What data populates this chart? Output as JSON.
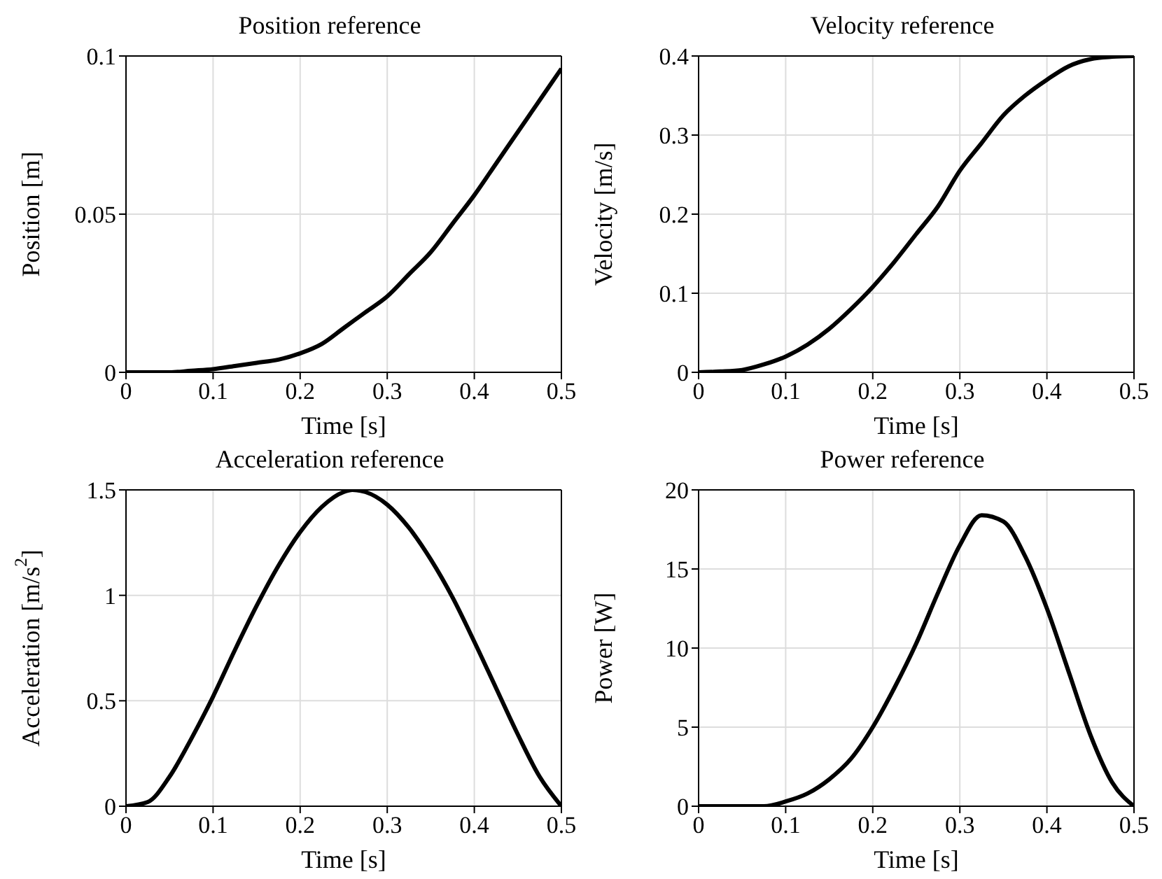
{
  "chart_data": [
    {
      "type": "line",
      "title": "Position reference",
      "xlabel": "Time [s]",
      "ylabel": "Position [m]",
      "xlim": [
        0,
        0.5
      ],
      "xticks": [
        0,
        0.1,
        0.2,
        0.3,
        0.4,
        0.5
      ],
      "ylim": [
        0,
        0.1
      ],
      "yticks": [
        0,
        0.05,
        0.1
      ],
      "grid": true,
      "marker": "none",
      "line_style": "solid",
      "x": [
        0,
        0.025,
        0.05,
        0.075,
        0.1,
        0.125,
        0.15,
        0.175,
        0.2,
        0.225,
        0.25,
        0.275,
        0.3,
        0.325,
        0.35,
        0.375,
        0.4,
        0.425,
        0.45,
        0.475,
        0.5
      ],
      "series": [
        {
          "color": "#000000",
          "values": [
            0,
            0,
            0,
            0.0005,
            0.001,
            0.002,
            0.003,
            0.004,
            0.006,
            0.009,
            0.014,
            0.019,
            0.024,
            0.031,
            0.038,
            0.047,
            0.056,
            0.066,
            0.076,
            0.086,
            0.096
          ]
        }
      ]
    },
    {
      "type": "line",
      "title": "Velocity reference",
      "xlabel": "Time [s]",
      "ylabel": "Velocity [m/s]",
      "xlim": [
        0,
        0.5
      ],
      "xticks": [
        0,
        0.1,
        0.2,
        0.3,
        0.4,
        0.5
      ],
      "ylim": [
        0,
        0.4
      ],
      "yticks": [
        0,
        0.1,
        0.2,
        0.3,
        0.4
      ],
      "grid": true,
      "marker": "none",
      "line_style": "solid",
      "x": [
        0,
        0.025,
        0.05,
        0.075,
        0.1,
        0.125,
        0.15,
        0.175,
        0.2,
        0.225,
        0.25,
        0.275,
        0.3,
        0.325,
        0.35,
        0.375,
        0.4,
        0.425,
        0.45,
        0.475,
        0.5
      ],
      "series": [
        {
          "color": "#000000",
          "values": [
            0,
            0.001,
            0.003,
            0.01,
            0.02,
            0.035,
            0.055,
            0.08,
            0.108,
            0.14,
            0.175,
            0.21,
            0.255,
            0.29,
            0.325,
            0.35,
            0.37,
            0.387,
            0.396,
            0.399,
            0.4
          ]
        }
      ]
    },
    {
      "type": "line",
      "title": "Acceleration reference",
      "xlabel": "Time [s]",
      "ylabel": "Acceleration [m/s$^{2}$]",
      "xlim": [
        0,
        0.5
      ],
      "xticks": [
        0,
        0.1,
        0.2,
        0.3,
        0.4,
        0.5
      ],
      "ylim": [
        0,
        1.5
      ],
      "yticks": [
        0,
        0.5,
        1,
        1.5
      ],
      "grid": true,
      "marker": "none",
      "line_style": "solid",
      "x": [
        0,
        0.025,
        0.05,
        0.075,
        0.1,
        0.125,
        0.15,
        0.175,
        0.2,
        0.225,
        0.25,
        0.26,
        0.275,
        0.3,
        0.325,
        0.35,
        0.375,
        0.4,
        0.425,
        0.45,
        0.475,
        0.5
      ],
      "series": [
        {
          "color": "#000000",
          "values": [
            0,
            0.02,
            0.14,
            0.32,
            0.52,
            0.74,
            0.95,
            1.14,
            1.3,
            1.42,
            1.49,
            1.5,
            1.49,
            1.43,
            1.32,
            1.17,
            0.99,
            0.78,
            0.56,
            0.34,
            0.14,
            0
          ]
        }
      ]
    },
    {
      "type": "line",
      "title": "Power reference",
      "xlabel": "Time [s]",
      "ylabel": "Power [W]",
      "xlim": [
        0,
        0.5
      ],
      "xticks": [
        0,
        0.1,
        0.2,
        0.3,
        0.4,
        0.5
      ],
      "ylim": [
        0,
        20
      ],
      "yticks": [
        0,
        5,
        10,
        15,
        20
      ],
      "grid": true,
      "marker": "none",
      "line_style": "solid",
      "x": [
        0,
        0.025,
        0.05,
        0.075,
        0.1,
        0.125,
        0.15,
        0.175,
        0.2,
        0.225,
        0.25,
        0.275,
        0.3,
        0.325,
        0.35,
        0.375,
        0.4,
        0.425,
        0.45,
        0.475,
        0.5
      ],
      "series": [
        {
          "color": "#000000",
          "values": [
            0,
            0,
            0,
            0,
            0.3,
            0.8,
            1.7,
            3,
            5,
            7.5,
            10.3,
            13.5,
            16.5,
            18.4,
            18,
            15.8,
            12.5,
            8.5,
            4.5,
            1.5,
            0
          ]
        }
      ]
    }
  ]
}
